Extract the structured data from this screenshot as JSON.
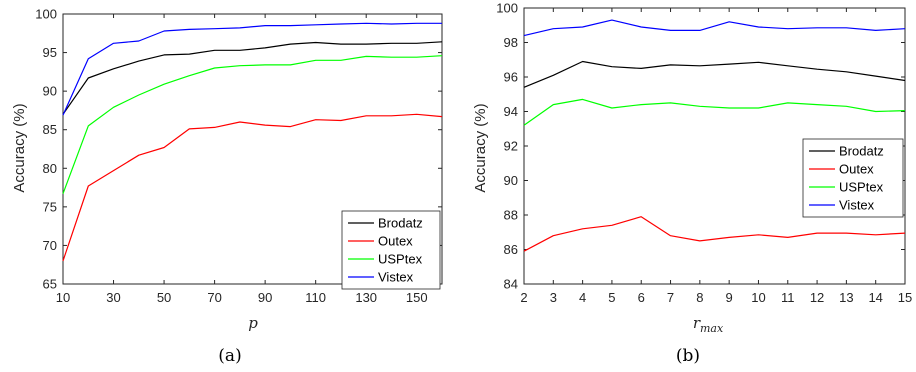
{
  "chart_data": [
    {
      "type": "line",
      "caption": "(a)",
      "xlabel": "p",
      "ylabel": "Accuracy (%)",
      "xlim": [
        10,
        160
      ],
      "ylim": [
        65,
        100
      ],
      "xticks": [
        10,
        30,
        50,
        70,
        90,
        110,
        130,
        150
      ],
      "yticks": [
        65,
        70,
        75,
        80,
        85,
        90,
        95,
        100
      ],
      "legend_position": "bottom-right",
      "grid": false,
      "x": [
        10,
        20,
        30,
        40,
        50,
        60,
        70,
        80,
        90,
        100,
        110,
        120,
        130,
        140,
        150,
        160
      ],
      "series": [
        {
          "name": "Brodatz",
          "color": "#000000",
          "values": [
            87.0,
            91.7,
            92.9,
            93.9,
            94.7,
            94.8,
            95.3,
            95.3,
            95.6,
            96.1,
            96.3,
            96.1,
            96.1,
            96.2,
            96.2,
            96.4
          ]
        },
        {
          "name": "Outex",
          "color": "#ff0000",
          "values": [
            68.0,
            77.7,
            79.7,
            81.7,
            82.7,
            85.1,
            85.3,
            86.0,
            85.6,
            85.4,
            86.3,
            86.2,
            86.8,
            86.8,
            87.0,
            86.7
          ]
        },
        {
          "name": "USPtex",
          "color": "#00ff00",
          "values": [
            76.7,
            85.5,
            87.9,
            89.5,
            90.9,
            92.0,
            93.0,
            93.3,
            93.4,
            93.4,
            94.0,
            94.0,
            94.5,
            94.4,
            94.4,
            94.6
          ]
        },
        {
          "name": "Vistex",
          "color": "#0000ff",
          "values": [
            86.9,
            94.2,
            96.2,
            96.5,
            97.8,
            98.0,
            98.1,
            98.2,
            98.5,
            98.5,
            98.6,
            98.7,
            98.8,
            98.7,
            98.8,
            98.8
          ]
        }
      ]
    },
    {
      "type": "line",
      "caption": "(b)",
      "xlabel": "r",
      "xlabel_sub": "max",
      "ylabel": "Accuracy (%)",
      "xlim": [
        2,
        15
      ],
      "ylim": [
        84,
        100
      ],
      "xticks": [
        2,
        3,
        4,
        5,
        6,
        7,
        8,
        9,
        10,
        11,
        12,
        13,
        14,
        15
      ],
      "yticks": [
        84,
        86,
        88,
        90,
        92,
        94,
        96,
        98,
        100
      ],
      "legend_position": "center-right",
      "grid": false,
      "x": [
        2,
        3,
        4,
        5,
        6,
        7,
        8,
        9,
        10,
        11,
        12,
        13,
        14,
        15
      ],
      "series": [
        {
          "name": "Brodatz",
          "color": "#000000",
          "values": [
            95.4,
            96.1,
            96.9,
            96.6,
            96.5,
            96.7,
            96.65,
            96.75,
            96.85,
            96.65,
            96.45,
            96.3,
            96.05,
            95.8
          ]
        },
        {
          "name": "Outex",
          "color": "#ff0000",
          "values": [
            85.9,
            86.8,
            87.2,
            87.4,
            87.9,
            86.8,
            86.5,
            86.7,
            86.85,
            86.7,
            86.95,
            86.95,
            86.85,
            86.95
          ]
        },
        {
          "name": "USPtex",
          "color": "#00ff00",
          "values": [
            93.2,
            94.4,
            94.7,
            94.2,
            94.4,
            94.5,
            94.3,
            94.2,
            94.2,
            94.5,
            94.4,
            94.3,
            94.0,
            94.05
          ]
        },
        {
          "name": "Vistex",
          "color": "#0000ff",
          "values": [
            98.4,
            98.8,
            98.9,
            99.3,
            98.9,
            98.7,
            98.7,
            99.2,
            98.9,
            98.8,
            98.85,
            98.85,
            98.7,
            98.8
          ]
        }
      ]
    }
  ]
}
